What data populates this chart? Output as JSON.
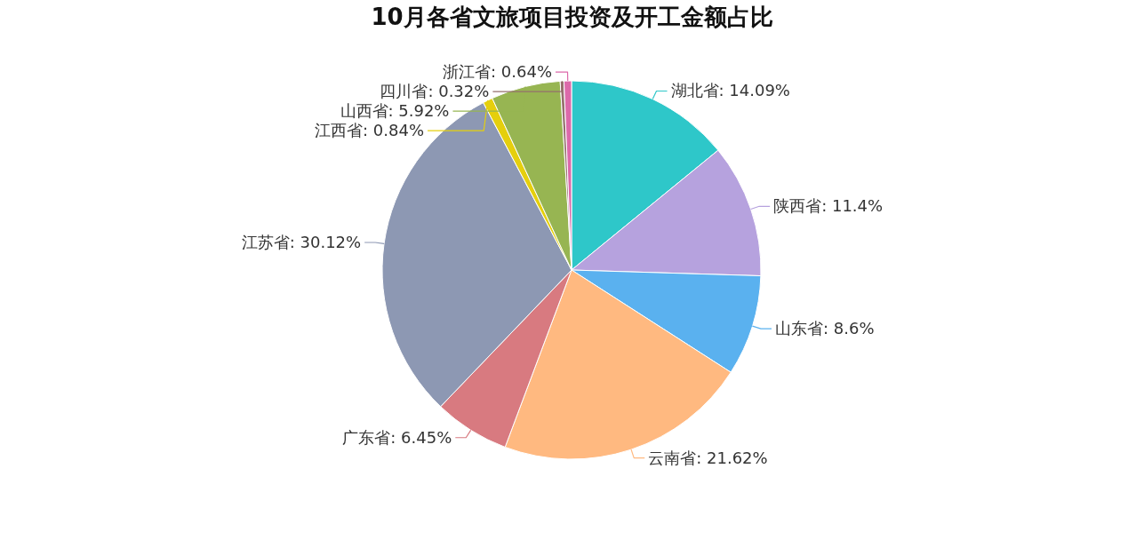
{
  "chart_data": {
    "type": "pie",
    "title": "10月各省文旅项目投资及开工金额占比",
    "categories": [
      "湖北省",
      "陕西省",
      "山东省",
      "云南省",
      "广东省",
      "江苏省",
      "江西省",
      "山西省",
      "四川省",
      "浙江省"
    ],
    "values": [
      14.09,
      11.4,
      8.6,
      21.62,
      6.45,
      30.12,
      0.84,
      5.92,
      0.32,
      0.64
    ],
    "value_labels": [
      ": 14.09%",
      ": 11.4%",
      ": 8.6%",
      ": 21.62%",
      ": 6.45%",
      ": 30.12%",
      ": 0.84%",
      ": 5.92%",
      ": 0.32%",
      ": 0.64%"
    ],
    "colors": [
      "#2ec7c9",
      "#b6a2de",
      "#5ab1ef",
      "#ffb980",
      "#d87a80",
      "#8d98b3",
      "#e5cf0d",
      "#97b552",
      "#95706d",
      "#dc69aa"
    ]
  }
}
